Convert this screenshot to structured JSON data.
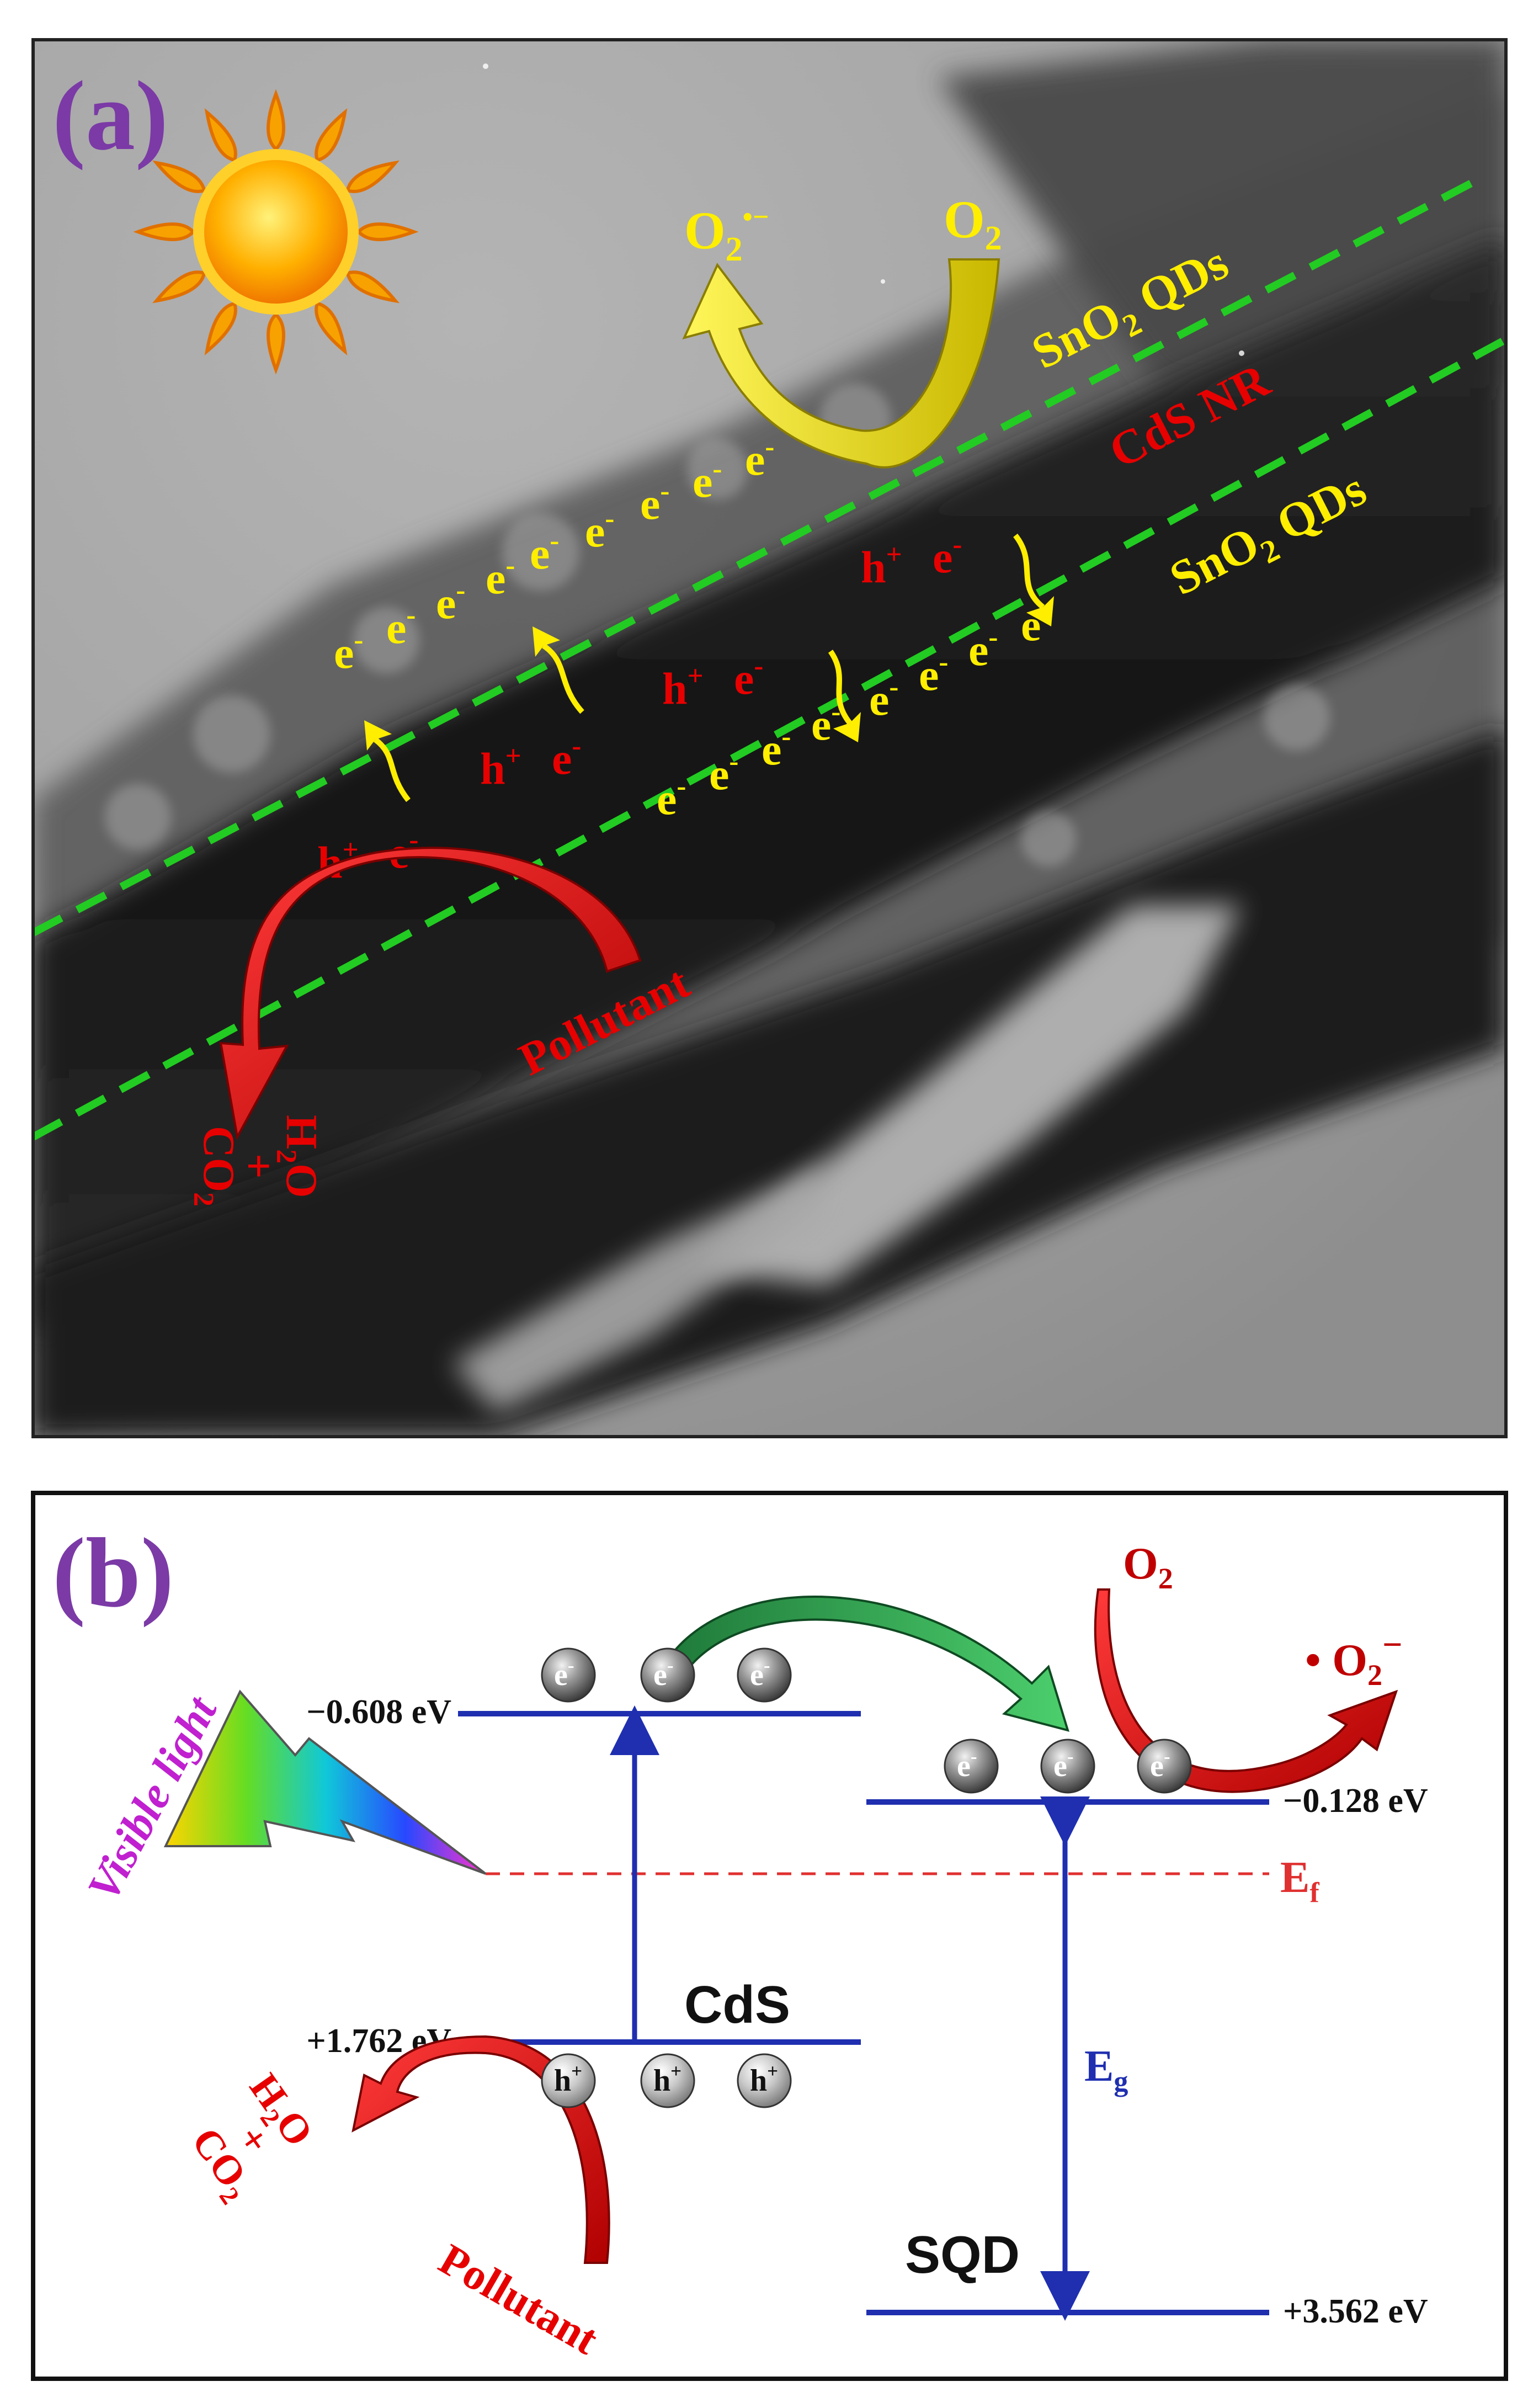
{
  "panel_a": {
    "label": "(a)",
    "o2_label": "O",
    "o2_sub": "2",
    "superoxide_label": "O",
    "superoxide_sub": "2",
    "superoxide_sup": "•−",
    "sno2_upper": {
      "main": "SnO",
      "sub": "2",
      "tail": " QDs"
    },
    "sno2_lower": {
      "main": "SnO",
      "sub": "2",
      "tail": " QDs"
    },
    "cds_label": "CdS NR",
    "electron": {
      "main": "e",
      "sup": "-"
    },
    "hole": {
      "main": "h",
      "sup": "+"
    },
    "pollutant": "Pollutant",
    "water": {
      "main": "H",
      "sub": "2",
      "tail": "O"
    },
    "plus": "+",
    "co2": {
      "main": "CO",
      "sub": "2"
    },
    "colors": {
      "panel_label": "#7b3aa6",
      "electron": "#ffee00",
      "hole": "#e60000",
      "boundary": "#22cc22",
      "o2_arrow": "#f1e500",
      "pollutant_arrow": "#e60000"
    }
  },
  "panel_b": {
    "label": "(b)",
    "cds_cb_energy": "−0.608 eV",
    "cds_vb_energy": "+1.762 eV",
    "sqd_cb_energy": "−0.128 eV",
    "sqd_vb_energy": "+3.562 eV",
    "cds_label": "CdS",
    "sqd_label": "SQD",
    "fermi": {
      "main": "E",
      "sub": "f"
    },
    "gap": {
      "main": "E",
      "sub": "g"
    },
    "visible_light": "Visible light",
    "o2": {
      "main": "O",
      "sub": "2"
    },
    "superoxide": {
      "dot": "• ",
      "main": "O",
      "sub": "2",
      "sup": "−"
    },
    "electron": {
      "main": "e",
      "sup": "-"
    },
    "hole": {
      "main": "h",
      "sup": "+"
    },
    "pollutant": "Pollutant",
    "water": {
      "main": "H",
      "sub": "2",
      "tail": "O"
    },
    "plus": "+",
    "co2": {
      "main": "CO",
      "sub": "2"
    },
    "colors": {
      "panel_label": "#7b3aa6",
      "level_line": "#1f2fb0",
      "energy_text": "#111111",
      "fermi": "#e03030",
      "gap_text": "#1f2fb0",
      "visible_light": "#c020d0",
      "transfer_arrow": "#2aa84a",
      "red_arrow": "#e60000"
    }
  }
}
